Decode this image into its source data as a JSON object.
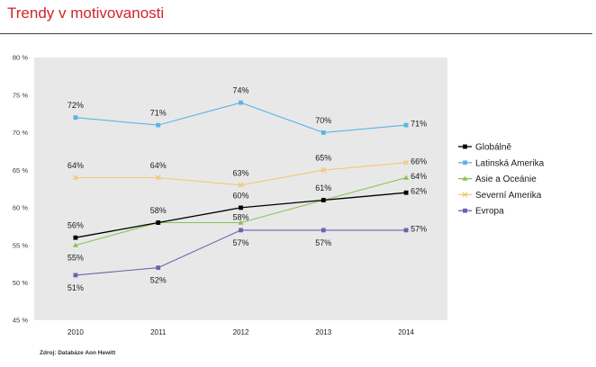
{
  "footer": {
    "source": "Zdroj: Databáze Aon Hewitt"
  },
  "chart_data": {
    "type": "line",
    "title": "Trendy v motivovanosti",
    "categories": [
      "2010",
      "2011",
      "2012",
      "2013",
      "2014"
    ],
    "ylim": [
      45,
      80
    ],
    "y_ticks": [
      45,
      50,
      55,
      60,
      65,
      70,
      75,
      80
    ],
    "y_tick_labels": [
      "45 %",
      "50 %",
      "55 %",
      "60 %",
      "65 %",
      "70 %",
      "75 %",
      "80 %"
    ],
    "grid": false,
    "legend": "right",
    "plot_background": "#E8E8E8",
    "series": [
      {
        "name": "Globálně",
        "color": "#000000",
        "marker": "square",
        "values": [
          56,
          58,
          60,
          61,
          62
        ],
        "labels": [
          "56%",
          "58%",
          "60%",
          null,
          "62%"
        ]
      },
      {
        "name": "Latinská Amerika",
        "color": "#5BB4E3",
        "marker": "square",
        "values": [
          72,
          71,
          74,
          70,
          71
        ],
        "labels": [
          "72%",
          "71%",
          "74%",
          "70%",
          "71%"
        ]
      },
      {
        "name": "Asie a Oceánie",
        "color": "#8CBF5A",
        "marker": "triangle",
        "values": [
          55,
          58,
          58,
          61,
          64
        ],
        "labels": [
          "55%",
          null,
          "58%",
          "61%",
          "64%"
        ]
      },
      {
        "name": "Severní Amerika",
        "color": "#F3C874",
        "marker": "x",
        "values": [
          64,
          64,
          63,
          65,
          66
        ],
        "labels": [
          "64%",
          "64%",
          "63%",
          "65%",
          "66%"
        ]
      },
      {
        "name": "Evropa",
        "color": "#6E62AC",
        "marker": "square",
        "values": [
          51,
          52,
          57,
          57,
          57
        ],
        "labels": [
          "51%",
          "52%",
          "57%",
          "57%",
          "57%"
        ]
      }
    ]
  }
}
